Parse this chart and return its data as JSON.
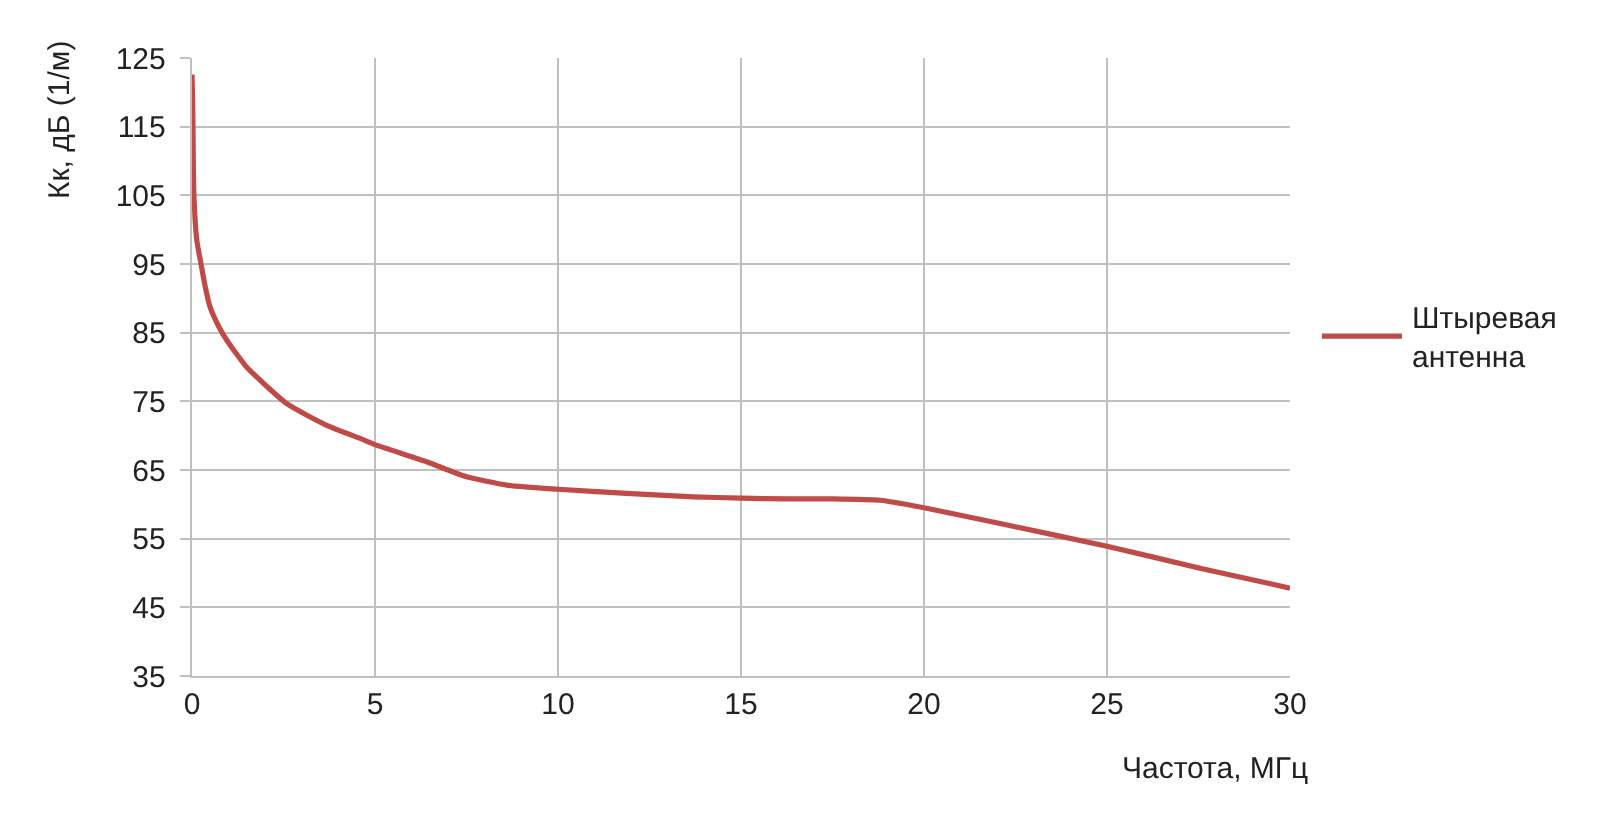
{
  "chart_data": {
    "type": "line",
    "xlabel": "Частота, МГц",
    "ylabel": "Кк, дБ (1/м)",
    "x": [
      0.0,
      0.02,
      0.05,
      0.13,
      0.26,
      0.36,
      0.49,
      0.73,
      0.95,
      1.49,
      2.58,
      3.68,
      4.59,
      5,
      6.41,
      7.5,
      8.6,
      10,
      11.87,
      13.7,
      15,
      16.25,
      17.5,
      18.8,
      20,
      22.08,
      25,
      27.54,
      30
    ],
    "series": [
      {
        "name": "Штыревая антенна",
        "color": "#be4b48",
        "values": [
          122.6,
          117.9,
          105.3,
          98.5,
          94.6,
          91.7,
          88.8,
          85.9,
          83.9,
          80.0,
          74.7,
          71.5,
          69.6,
          68.7,
          66.2,
          64.0,
          62.8,
          62.2,
          61.6,
          61.1,
          60.9,
          60.8,
          60.8,
          60.6,
          59.5,
          57.2,
          53.9,
          50.7,
          47.8
        ]
      }
    ],
    "xlim": [
      0,
      30
    ],
    "xticks": [
      0,
      5,
      10,
      15,
      20,
      25,
      30
    ],
    "ylim": [
      35,
      125
    ],
    "yticks": [
      35,
      45,
      55,
      65,
      75,
      85,
      95,
      105,
      115,
      125
    ],
    "grid": true,
    "legend": "right",
    "line_style": "solid"
  }
}
